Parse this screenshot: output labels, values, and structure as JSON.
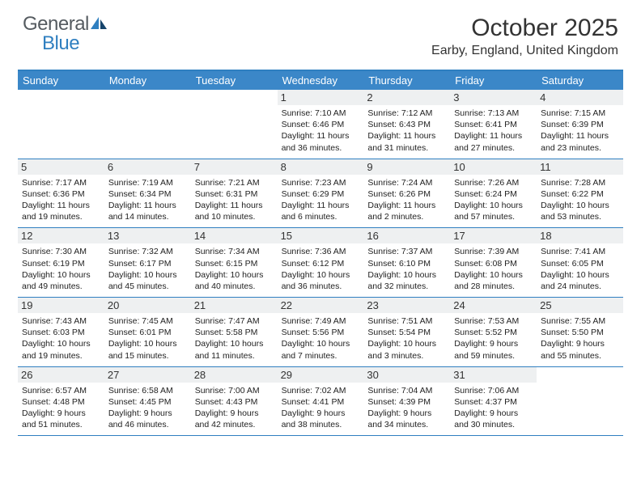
{
  "brand": {
    "part1": "General",
    "part2": "Blue"
  },
  "title": "October 2025",
  "location": "Earby, England, United Kingdom",
  "colors": {
    "header_bg": "#3b87c8",
    "border": "#2f7fc0",
    "daynum_bg": "#eef0f1",
    "text": "#333333",
    "logo_gray": "#555b60",
    "logo_blue": "#2f7fc0"
  },
  "day_names": [
    "Sunday",
    "Monday",
    "Tuesday",
    "Wednesday",
    "Thursday",
    "Friday",
    "Saturday"
  ],
  "weeks": [
    [
      {
        "n": "",
        "empty": true
      },
      {
        "n": "",
        "empty": true
      },
      {
        "n": "",
        "empty": true
      },
      {
        "n": "1",
        "sunrise": "7:10 AM",
        "sunset": "6:46 PM",
        "daylight": "11 hours and 36 minutes."
      },
      {
        "n": "2",
        "sunrise": "7:12 AM",
        "sunset": "6:43 PM",
        "daylight": "11 hours and 31 minutes."
      },
      {
        "n": "3",
        "sunrise": "7:13 AM",
        "sunset": "6:41 PM",
        "daylight": "11 hours and 27 minutes."
      },
      {
        "n": "4",
        "sunrise": "7:15 AM",
        "sunset": "6:39 PM",
        "daylight": "11 hours and 23 minutes."
      }
    ],
    [
      {
        "n": "5",
        "sunrise": "7:17 AM",
        "sunset": "6:36 PM",
        "daylight": "11 hours and 19 minutes."
      },
      {
        "n": "6",
        "sunrise": "7:19 AM",
        "sunset": "6:34 PM",
        "daylight": "11 hours and 14 minutes."
      },
      {
        "n": "7",
        "sunrise": "7:21 AM",
        "sunset": "6:31 PM",
        "daylight": "11 hours and 10 minutes."
      },
      {
        "n": "8",
        "sunrise": "7:23 AM",
        "sunset": "6:29 PM",
        "daylight": "11 hours and 6 minutes."
      },
      {
        "n": "9",
        "sunrise": "7:24 AM",
        "sunset": "6:26 PM",
        "daylight": "11 hours and 2 minutes."
      },
      {
        "n": "10",
        "sunrise": "7:26 AM",
        "sunset": "6:24 PM",
        "daylight": "10 hours and 57 minutes."
      },
      {
        "n": "11",
        "sunrise": "7:28 AM",
        "sunset": "6:22 PM",
        "daylight": "10 hours and 53 minutes."
      }
    ],
    [
      {
        "n": "12",
        "sunrise": "7:30 AM",
        "sunset": "6:19 PM",
        "daylight": "10 hours and 49 minutes."
      },
      {
        "n": "13",
        "sunrise": "7:32 AM",
        "sunset": "6:17 PM",
        "daylight": "10 hours and 45 minutes."
      },
      {
        "n": "14",
        "sunrise": "7:34 AM",
        "sunset": "6:15 PM",
        "daylight": "10 hours and 40 minutes."
      },
      {
        "n": "15",
        "sunrise": "7:36 AM",
        "sunset": "6:12 PM",
        "daylight": "10 hours and 36 minutes."
      },
      {
        "n": "16",
        "sunrise": "7:37 AM",
        "sunset": "6:10 PM",
        "daylight": "10 hours and 32 minutes."
      },
      {
        "n": "17",
        "sunrise": "7:39 AM",
        "sunset": "6:08 PM",
        "daylight": "10 hours and 28 minutes."
      },
      {
        "n": "18",
        "sunrise": "7:41 AM",
        "sunset": "6:05 PM",
        "daylight": "10 hours and 24 minutes."
      }
    ],
    [
      {
        "n": "19",
        "sunrise": "7:43 AM",
        "sunset": "6:03 PM",
        "daylight": "10 hours and 19 minutes."
      },
      {
        "n": "20",
        "sunrise": "7:45 AM",
        "sunset": "6:01 PM",
        "daylight": "10 hours and 15 minutes."
      },
      {
        "n": "21",
        "sunrise": "7:47 AM",
        "sunset": "5:58 PM",
        "daylight": "10 hours and 11 minutes."
      },
      {
        "n": "22",
        "sunrise": "7:49 AM",
        "sunset": "5:56 PM",
        "daylight": "10 hours and 7 minutes."
      },
      {
        "n": "23",
        "sunrise": "7:51 AM",
        "sunset": "5:54 PM",
        "daylight": "10 hours and 3 minutes."
      },
      {
        "n": "24",
        "sunrise": "7:53 AM",
        "sunset": "5:52 PM",
        "daylight": "9 hours and 59 minutes."
      },
      {
        "n": "25",
        "sunrise": "7:55 AM",
        "sunset": "5:50 PM",
        "daylight": "9 hours and 55 minutes."
      }
    ],
    [
      {
        "n": "26",
        "sunrise": "6:57 AM",
        "sunset": "4:48 PM",
        "daylight": "9 hours and 51 minutes."
      },
      {
        "n": "27",
        "sunrise": "6:58 AM",
        "sunset": "4:45 PM",
        "daylight": "9 hours and 46 minutes."
      },
      {
        "n": "28",
        "sunrise": "7:00 AM",
        "sunset": "4:43 PM",
        "daylight": "9 hours and 42 minutes."
      },
      {
        "n": "29",
        "sunrise": "7:02 AM",
        "sunset": "4:41 PM",
        "daylight": "9 hours and 38 minutes."
      },
      {
        "n": "30",
        "sunrise": "7:04 AM",
        "sunset": "4:39 PM",
        "daylight": "9 hours and 34 minutes."
      },
      {
        "n": "31",
        "sunrise": "7:06 AM",
        "sunset": "4:37 PM",
        "daylight": "9 hours and 30 minutes."
      },
      {
        "n": "",
        "empty": true
      }
    ]
  ],
  "labels": {
    "sunrise": "Sunrise:",
    "sunset": "Sunset:",
    "daylight": "Daylight:"
  }
}
